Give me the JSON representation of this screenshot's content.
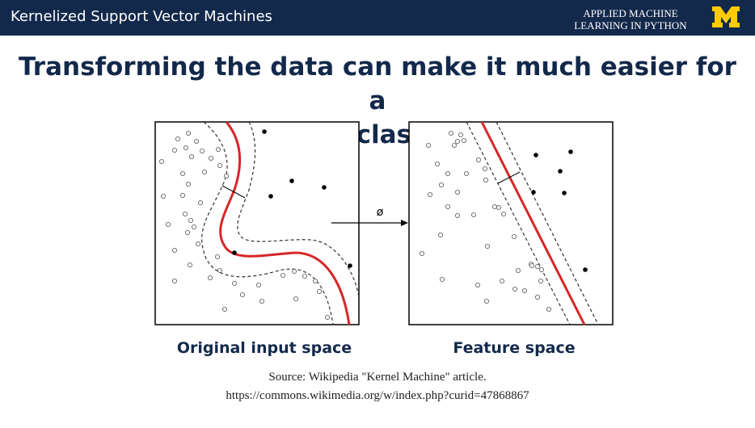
{
  "header": {
    "title": "Kernelized Support Vector Machines",
    "course_line1": "APPLIED MACHINE",
    "course_line2": "LEARNING IN PYTHON",
    "logo_icon": "university-m-logo-icon",
    "logo_color": "#ffcb05",
    "bar_color": "#13294b"
  },
  "slide": {
    "title_line1": "Transforming the data can make it much easier for a",
    "title_line2": "linear classifier."
  },
  "diagram": {
    "mapping_symbol": "ø",
    "left_caption": "Original input space",
    "right_caption": "Feature space",
    "boundary_color": "#d62728"
  },
  "source": {
    "line1": "Source: Wikipedia \"Kernel Machine\" article.",
    "line2": "https://commons.wikimedia.org/w/index.php?curid=47868867"
  }
}
